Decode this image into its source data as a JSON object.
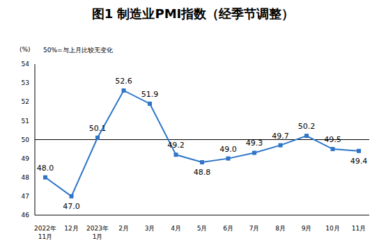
{
  "chart_data": {
    "type": "line",
    "title": "图1 制造业PMI指数（经季节调整）",
    "y_label": "(%)",
    "note": "50%=与上月比较无变化",
    "categories": [
      "2022年\n11月",
      "12月",
      "2023年\n1月",
      "2月",
      "3月",
      "4月",
      "5月",
      "6月",
      "7月",
      "8月",
      "9月",
      "10月",
      "11月"
    ],
    "values": [
      48.0,
      47.0,
      50.1,
      52.6,
      51.9,
      49.2,
      48.8,
      49.0,
      49.3,
      49.7,
      50.2,
      49.5,
      49.4
    ],
    "value_labels": [
      "48.0",
      "47.0",
      "50.1",
      "52.6",
      "51.9",
      "49.2",
      "48.8",
      "49.0",
      "49.3",
      "49.7",
      "50.2",
      "49.5",
      "49.4"
    ],
    "color": "#2e75c8",
    "marker": "square",
    "data_labels": true,
    "ylim": [
      46,
      54
    ],
    "yticks": [
      46,
      47,
      48,
      49,
      50,
      51,
      52,
      53,
      54
    ],
    "reference_line": 50,
    "grid": false
  }
}
